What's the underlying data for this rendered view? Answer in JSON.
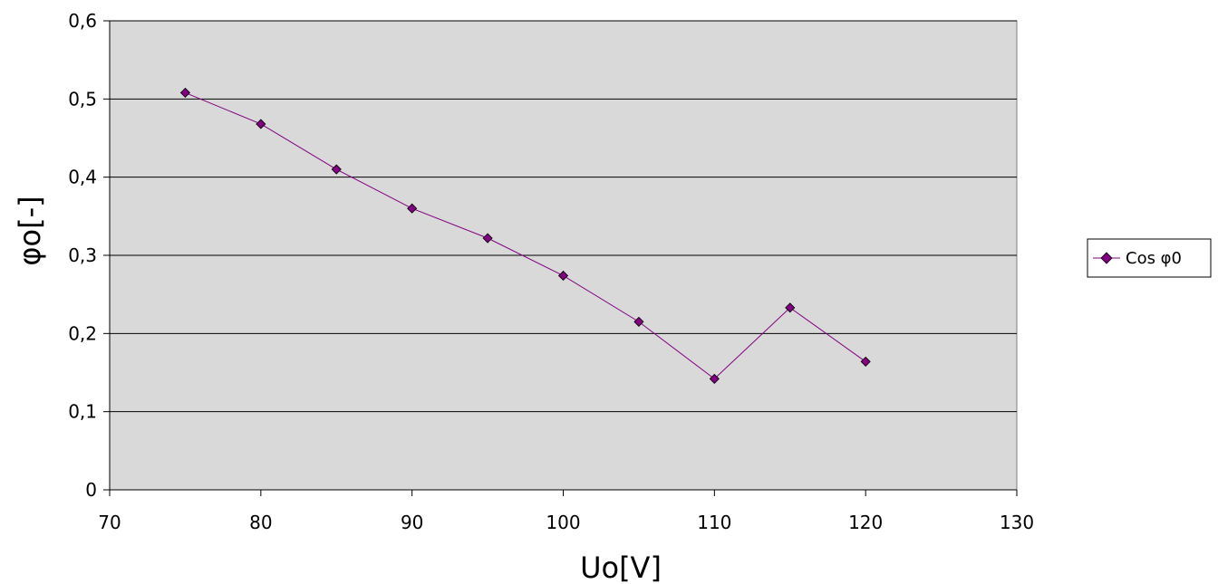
{
  "chart_data": {
    "type": "line",
    "title": "",
    "xlabel": "Uo[V]",
    "ylabel": "φo[-]",
    "xlim": [
      70,
      130
    ],
    "ylim": [
      0,
      0.6
    ],
    "x_ticks": [
      70,
      80,
      90,
      100,
      110,
      120,
      130
    ],
    "x_tick_labels": [
      "70",
      "80",
      "90",
      "100",
      "110",
      "120",
      "130"
    ],
    "y_ticks": [
      0,
      0.1,
      0.2,
      0.3,
      0.4,
      0.5,
      0.6
    ],
    "y_tick_labels": [
      "0",
      "0,1",
      "0,2",
      "0,3",
      "0,4",
      "0,5",
      "0,6"
    ],
    "grid": "horizontal",
    "plot_background": "#d9d9d9",
    "legend_position": "right",
    "series": [
      {
        "name": "Cos φ0",
        "color": "#800080",
        "marker": "diamond",
        "x": [
          75,
          80,
          85,
          90,
          95,
          100,
          105,
          110,
          115,
          120
        ],
        "y": [
          0.508,
          0.468,
          0.41,
          0.36,
          0.322,
          0.274,
          0.215,
          0.142,
          0.233,
          0.164
        ]
      }
    ]
  }
}
